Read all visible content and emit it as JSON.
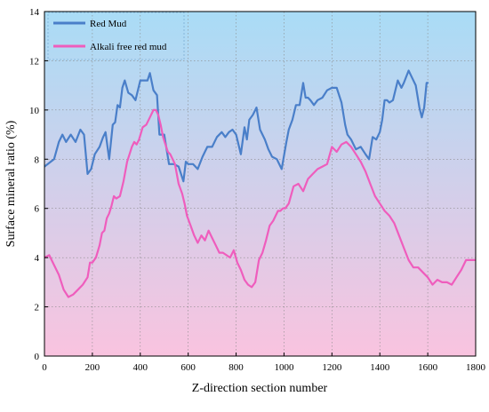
{
  "chart_data": {
    "type": "line",
    "title": "",
    "xlabel": "Z-direction section number",
    "ylabel": "Surface mineral ratio (%)",
    "xlim": [
      0,
      1800
    ],
    "ylim": [
      0,
      14
    ],
    "xticks": [
      0,
      200,
      400,
      600,
      800,
      1000,
      1200,
      1400,
      1600,
      1800
    ],
    "yticks": [
      0,
      2,
      4,
      6,
      8,
      10,
      12,
      14
    ],
    "xtick_labels": [
      "0",
      "200",
      "400",
      "600",
      "800",
      "1000",
      "1200",
      "1400",
      "1600",
      "1800"
    ],
    "ytick_labels": [
      "0",
      "2",
      "4",
      "6",
      "8",
      "10",
      "12",
      "14"
    ],
    "grid": "dotted",
    "legend_position": "top-left",
    "background": {
      "top": "#a9dcf6",
      "bottom": "#f9c3df"
    },
    "series": [
      {
        "name": "Red Mud",
        "color": "#4a7fc9",
        "x": [
          0,
          40,
          60,
          75,
          90,
          110,
          130,
          150,
          165,
          180,
          195,
          210,
          230,
          245,
          255,
          270,
          285,
          295,
          305,
          315,
          325,
          335,
          350,
          365,
          380,
          400,
          420,
          430,
          440,
          455,
          470,
          480,
          500,
          520,
          540,
          560,
          580,
          590,
          600,
          620,
          640,
          660,
          680,
          700,
          720,
          740,
          755,
          770,
          785,
          800,
          820,
          835,
          845,
          855,
          870,
          885,
          900,
          920,
          935,
          950,
          970,
          990,
          1010,
          1020,
          1035,
          1050,
          1065,
          1080,
          1090,
          1100,
          1110,
          1125,
          1140,
          1160,
          1180,
          1200,
          1220,
          1240,
          1255,
          1265,
          1280,
          1300,
          1320,
          1340,
          1355,
          1370,
          1385,
          1400,
          1410,
          1420,
          1430,
          1440,
          1455,
          1475,
          1490,
          1500,
          1520,
          1535,
          1550,
          1565,
          1575,
          1585,
          1595,
          1600
        ],
        "y": [
          7.7,
          8.0,
          8.7,
          9.0,
          8.7,
          9.0,
          8.7,
          9.2,
          9.0,
          7.4,
          7.6,
          8.2,
          8.5,
          8.9,
          9.1,
          8.0,
          9.4,
          9.5,
          10.2,
          10.1,
          10.9,
          11.2,
          10.7,
          10.6,
          10.4,
          11.2,
          11.2,
          11.2,
          11.5,
          10.8,
          10.6,
          9.0,
          9.0,
          7.8,
          7.8,
          7.7,
          7.1,
          7.9,
          7.8,
          7.8,
          7.6,
          8.1,
          8.5,
          8.5,
          8.9,
          9.1,
          8.9,
          9.1,
          9.2,
          9.0,
          8.2,
          9.3,
          8.8,
          9.6,
          9.8,
          10.1,
          9.2,
          8.8,
          8.4,
          8.1,
          8.0,
          7.6,
          8.7,
          9.2,
          9.6,
          10.2,
          10.2,
          11.1,
          10.5,
          10.5,
          10.4,
          10.2,
          10.4,
          10.5,
          10.8,
          10.9,
          10.9,
          10.3,
          9.4,
          9.0,
          8.8,
          8.4,
          8.5,
          8.2,
          8.0,
          8.9,
          8.8,
          9.1,
          9.6,
          10.4,
          10.4,
          10.3,
          10.4,
          11.2,
          10.9,
          11.1,
          11.6,
          11.3,
          11.0,
          10.1,
          9.7,
          10.1,
          11.1,
          11.1
        ]
      },
      {
        "name": "Alkali free red mud",
        "color": "#ef5dbd",
        "x": [
          0,
          20,
          40,
          60,
          80,
          100,
          120,
          140,
          160,
          180,
          190,
          200,
          215,
          230,
          240,
          250,
          260,
          270,
          280,
          290,
          300,
          315,
          330,
          345,
          355,
          365,
          375,
          385,
          395,
          410,
          425,
          440,
          455,
          465,
          475,
          485,
          495,
          505,
          515,
          525,
          535,
          545,
          560,
          575,
          585,
          595,
          610,
          625,
          640,
          655,
          670,
          685,
          700,
          715,
          730,
          745,
          760,
          775,
          790,
          805,
          820,
          835,
          850,
          865,
          880,
          895,
          910,
          925,
          940,
          955,
          965,
          975,
          985,
          995,
          1005,
          1020,
          1040,
          1060,
          1080,
          1100,
          1120,
          1140,
          1160,
          1180,
          1200,
          1220,
          1240,
          1260,
          1280,
          1300,
          1320,
          1340,
          1360,
          1380,
          1400,
          1420,
          1440,
          1460,
          1480,
          1500,
          1520,
          1540,
          1560,
          1580,
          1600,
          1620,
          1640,
          1660,
          1680,
          1700,
          1720,
          1740,
          1760,
          1780,
          1800
        ],
        "y": [
          4.0,
          4.1,
          3.7,
          3.3,
          2.7,
          2.4,
          2.5,
          2.7,
          2.9,
          3.2,
          3.8,
          3.8,
          4.0,
          4.5,
          5.0,
          5.1,
          5.6,
          5.8,
          6.1,
          6.5,
          6.4,
          6.5,
          7.1,
          7.9,
          8.2,
          8.5,
          8.7,
          8.6,
          8.8,
          9.3,
          9.4,
          9.7,
          10.0,
          10.0,
          9.8,
          9.4,
          8.9,
          8.6,
          8.3,
          8.2,
          8.0,
          7.8,
          7.0,
          6.6,
          6.2,
          5.7,
          5.3,
          4.9,
          4.6,
          4.9,
          4.7,
          5.1,
          4.8,
          4.5,
          4.2,
          4.2,
          4.1,
          4.0,
          4.3,
          3.8,
          3.5,
          3.1,
          2.9,
          2.8,
          3.0,
          3.9,
          4.2,
          4.7,
          5.3,
          5.5,
          5.7,
          5.9,
          5.9,
          6.0,
          6.0,
          6.2,
          6.9,
          7.0,
          6.7,
          7.2,
          7.4,
          7.6,
          7.7,
          7.8,
          8.5,
          8.3,
          8.6,
          8.7,
          8.5,
          8.2,
          7.9,
          7.5,
          7.0,
          6.5,
          6.2,
          5.9,
          5.7,
          5.4,
          4.9,
          4.4,
          3.9,
          3.6,
          3.6,
          3.4,
          3.2,
          2.9,
          3.1,
          3.0,
          3.0,
          2.9,
          3.2,
          3.5,
          3.9,
          3.9,
          3.9
        ]
      }
    ]
  }
}
